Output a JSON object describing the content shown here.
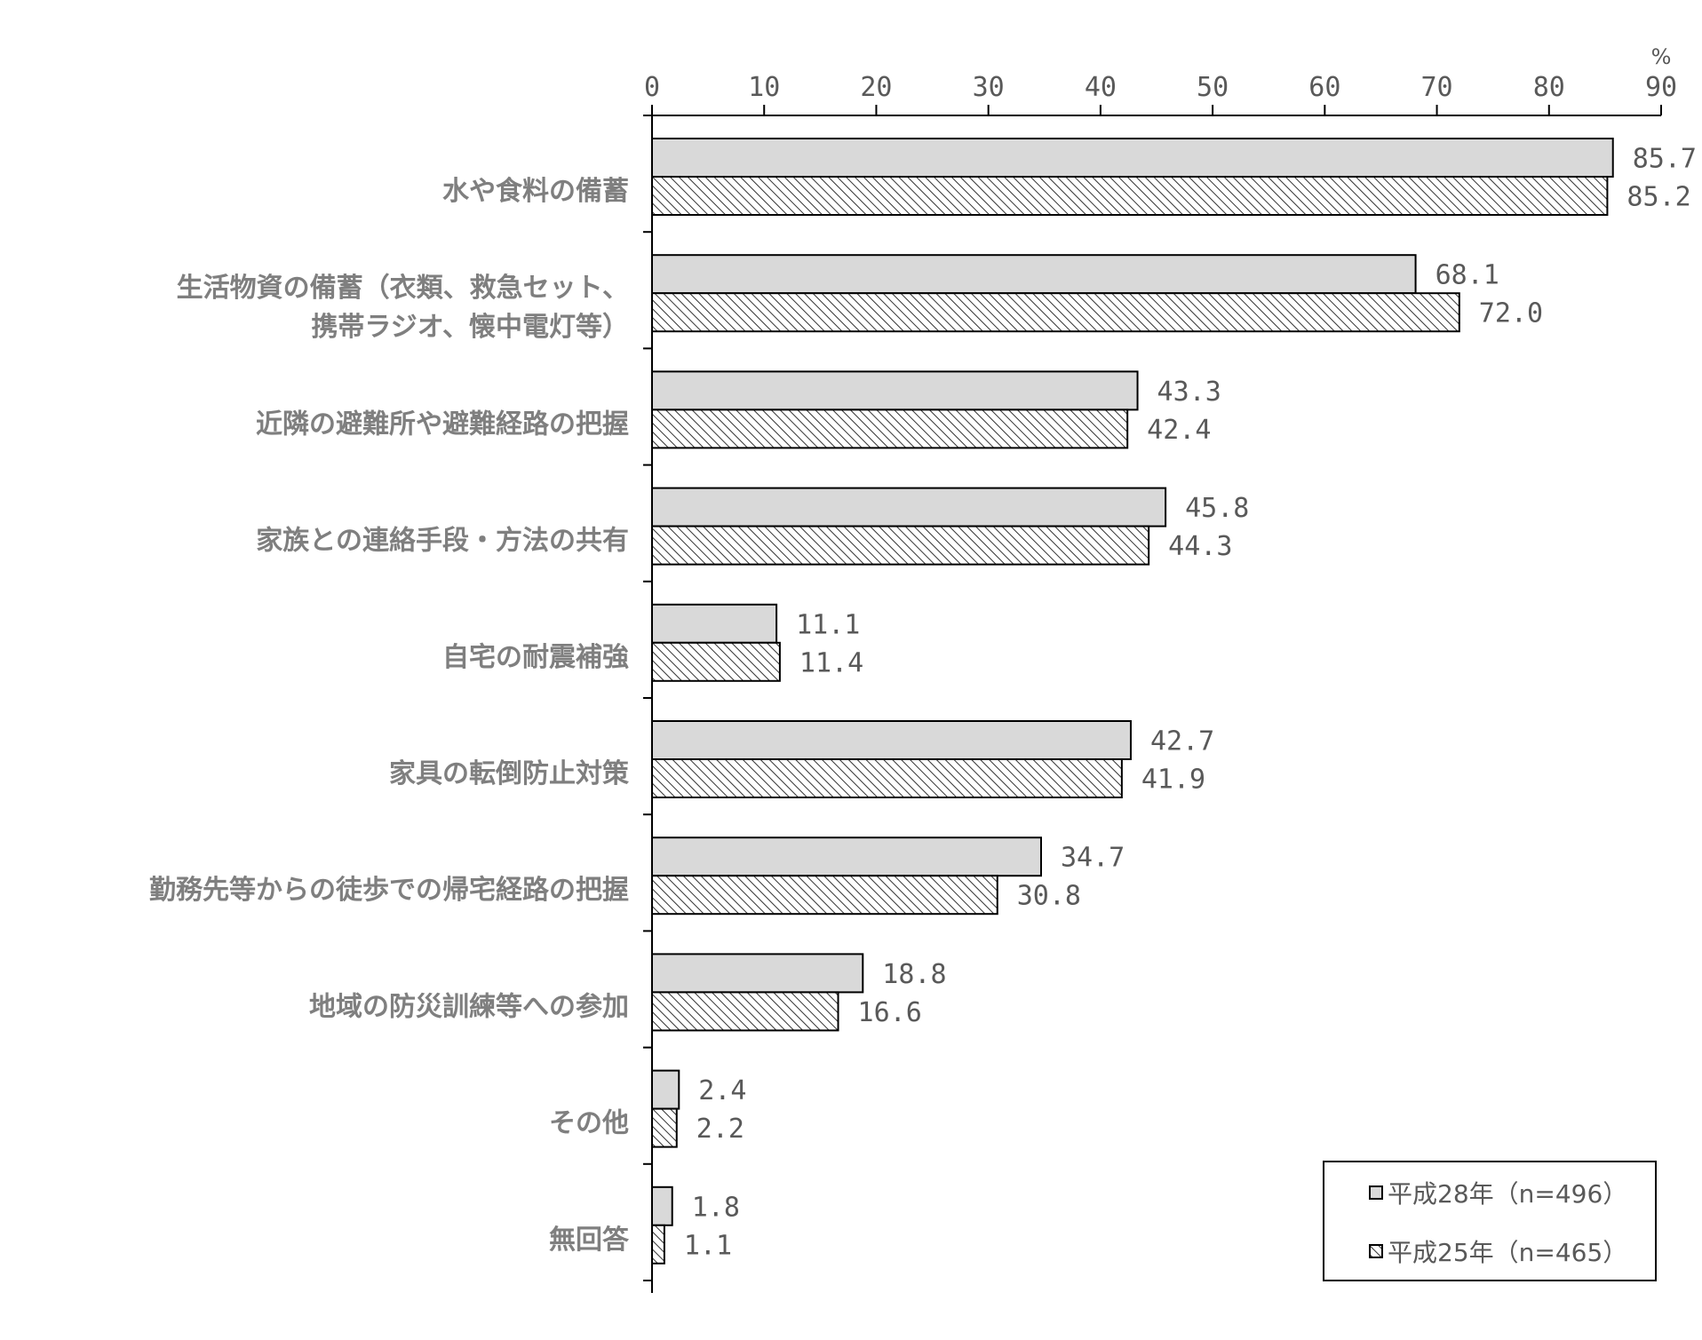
{
  "chart_data": {
    "type": "bar",
    "orientation": "horizontal",
    "unit": "%",
    "xlim": [
      0,
      90
    ],
    "ticks": [
      0,
      10,
      20,
      30,
      40,
      50,
      60,
      70,
      80,
      90
    ],
    "legend_position": "bottom-right",
    "categories": [
      [
        "水や食料の備蓄"
      ],
      [
        "生活物資の備蓄（衣類、救急セット、",
        "携帯ラジオ、懐中電灯等）"
      ],
      [
        "近隣の避難所や避難経路の把握"
      ],
      [
        "家族との連絡手段・方法の共有"
      ],
      [
        "自宅の耐震補強"
      ],
      [
        "家具の転倒防止対策"
      ],
      [
        "勤務先等からの徒歩での帰宅経路の把握"
      ],
      [
        "地域の防災訓練等への参加"
      ],
      [
        "その他"
      ],
      [
        "無回答"
      ]
    ],
    "series": [
      {
        "name": "平成28年（n=496）",
        "fill": "#d9d9d9",
        "pattern": "solid",
        "values": [
          85.7,
          68.1,
          43.3,
          45.8,
          11.1,
          42.7,
          34.7,
          18.8,
          2.4,
          1.8
        ],
        "labels": [
          "85.7",
          "68.1",
          "43.3",
          "45.8",
          "11.1",
          "42.7",
          "34.7",
          "18.8",
          "2.4",
          "1.8"
        ]
      },
      {
        "name": "平成25年（n=465）",
        "fill": "#ffffff",
        "pattern": "hatched",
        "values": [
          85.2,
          72.0,
          42.4,
          44.3,
          11.4,
          41.9,
          30.8,
          16.6,
          2.2,
          1.1
        ],
        "labels": [
          "85.2",
          "72.0",
          "42.4",
          "44.3",
          "11.4",
          "41.9",
          "30.8",
          "16.6",
          "2.2",
          "1.1"
        ]
      }
    ]
  }
}
